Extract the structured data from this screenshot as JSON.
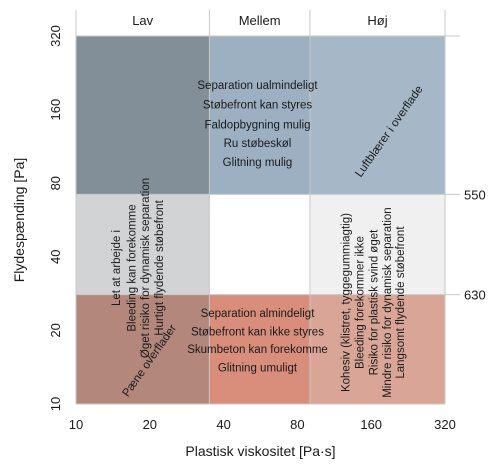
{
  "chart_data": {
    "type": "region_map",
    "x_axis": {
      "label": "Plastisk viskositet [Pa·s]",
      "scale": "log",
      "range": [
        10,
        320
      ],
      "ticks": [
        10,
        20,
        40,
        80,
        160,
        320
      ],
      "tick_labels": [
        "10",
        "20",
        "40",
        "80",
        "160",
        "320"
      ]
    },
    "y_axis": {
      "label": "Flydespænding [Pa]",
      "scale": "log",
      "range": [
        10,
        320
      ],
      "ticks": [
        10,
        20,
        40,
        80,
        160,
        320
      ],
      "tick_labels": [
        "10",
        "20",
        "40",
        "80",
        "160",
        "320"
      ]
    },
    "column_headers": [
      "Lav",
      "Mellem",
      "Høj"
    ],
    "column_bounds": [
      10,
      35,
      90,
      320
    ],
    "row_bounds": [
      10,
      28,
      72,
      320
    ],
    "right_axis_labels": [
      {
        "text": "550",
        "y": 72
      },
      {
        "text": "630",
        "y": 28
      }
    ],
    "colors": {
      "r0c0": "#b3877b",
      "r0c1": "#d98e7c",
      "r0c2": "#d9a597",
      "r1c0": "#d2d3d4",
      "r1c1": "#ffffff",
      "r1c2": "#f0f0f0",
      "r2c0": "#828f98",
      "r2c1": "#9db0c1",
      "r2c2": "#a6b8c7",
      "grid": "#c8c8c8"
    },
    "annotations": [
      {
        "text": "Separation ualmindeligt",
        "x": 55,
        "y": 200
      },
      {
        "text": "Støbefront kan styres",
        "x": 55,
        "y": 166
      },
      {
        "text": "Faldopbygning mulig",
        "x": 55,
        "y": 138
      },
      {
        "text": "Ru støbeskøl",
        "x": 55,
        "y": 116
      },
      {
        "text": "Glitning mulig",
        "x": 55,
        "y": 97
      },
      {
        "text": "Luftblærer i overflade",
        "x": 190,
        "y": 130
      },
      {
        "text": "Let at arbejde i",
        "x": 14.7,
        "y": 36
      },
      {
        "text": "Bleeding kan forekomme",
        "x": 17,
        "y": 36
      },
      {
        "text": "Øget risiko for dynamisk separation",
        "x": 19.3,
        "y": 36
      },
      {
        "text": "Hurtigt flydende støbefront",
        "x": 22,
        "y": 36
      },
      {
        "text": "Pæne overflader",
        "x": 20,
        "y": 15
      },
      {
        "text": "Separation almindeligt",
        "x": 55,
        "y": 23.4
      },
      {
        "text": "Støbefront kan ikke styres",
        "x": 55,
        "y": 19.6
      },
      {
        "text": "Skumbeton kan forekomme",
        "x": 55,
        "y": 16.6
      },
      {
        "text": "Glitning umuligt",
        "x": 55,
        "y": 14
      },
      {
        "text": "Kohesiv (klistret, tyggegummiagtig)",
        "x": 127,
        "y": 26
      },
      {
        "text": "Bleeding forekommer ikke",
        "x": 145,
        "y": 26
      },
      {
        "text": "Risiko for plastisk svind øget",
        "x": 165,
        "y": 26
      },
      {
        "text": "Mindre risiko for dynamisk separation",
        "x": 187,
        "y": 26
      },
      {
        "text": "Langsomt flydende støbefront",
        "x": 212,
        "y": 26
      }
    ]
  }
}
